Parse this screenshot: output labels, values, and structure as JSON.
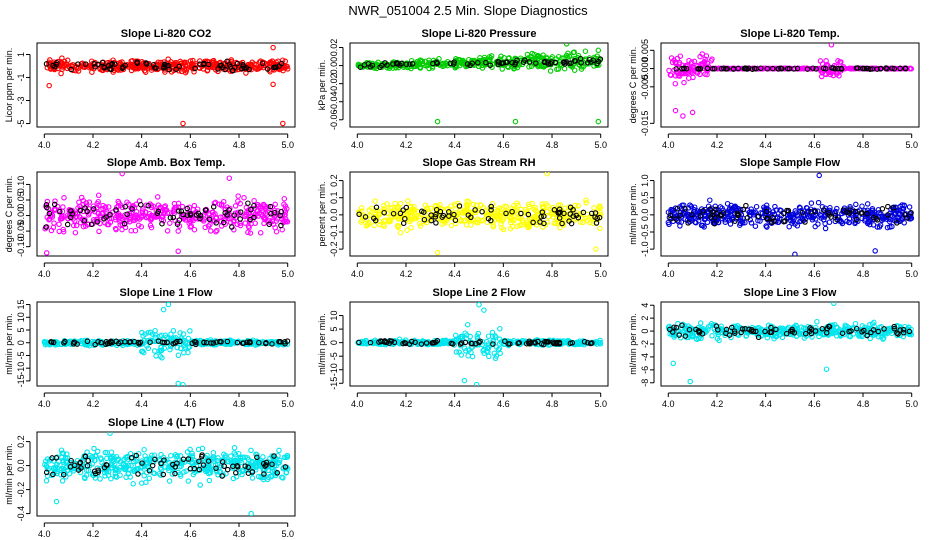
{
  "figure": {
    "title": "NWR_051004  2.5 Min. Slope Diagnostics"
  },
  "chart_data": [
    {
      "type": "scatter",
      "title": "Slope Li-820 CO2",
      "ylabel": "Licor ppm per min.",
      "xlim": [
        3.97,
        5.03
      ],
      "xticks": [
        "4.0",
        "4.2",
        "4.4",
        "4.6",
        "4.8",
        "5.0"
      ],
      "ylim": [
        -5.3,
        2.0
      ],
      "yticks": [
        "1",
        "-1",
        "-3",
        "-5"
      ],
      "color": "#ff0000",
      "seed": 11,
      "n": 420,
      "spread": 0.45,
      "profile": "flat",
      "outliers": [
        [
          4.57,
          -5.0
        ],
        [
          4.98,
          -5.0
        ],
        [
          4.94,
          1.6
        ],
        [
          4.94,
          -1.6
        ],
        [
          4.02,
          -1.7
        ]
      ]
    },
    {
      "type": "scatter",
      "title": "Slope Li-820 Pressure",
      "ylabel": "kPa per min.",
      "xlim": [
        3.97,
        5.03
      ],
      "xticks": [
        "4.0",
        "4.2",
        "4.4",
        "4.6",
        "4.8",
        "5.0"
      ],
      "ylim": [
        -0.068,
        0.025
      ],
      "yticks": [
        "0.02",
        "0.00",
        "-0.02",
        "-0.04",
        "-0.06"
      ],
      "color": "#00cc00",
      "seed": 23,
      "n": 380,
      "spread": 0.004,
      "profile": "rising",
      "outliers": [
        [
          4.86,
          0.024
        ],
        [
          4.33,
          -0.062
        ],
        [
          4.65,
          -0.062
        ],
        [
          4.99,
          -0.062
        ],
        [
          4.82,
          -0.004
        ]
      ]
    },
    {
      "type": "scatter",
      "title": "Slope Li-820 Temp.",
      "ylabel": "degrees C per min.",
      "xlim": [
        3.97,
        5.03
      ],
      "xticks": [
        "4.0",
        "4.2",
        "4.4",
        "4.6",
        "4.8",
        "5.0"
      ],
      "ylim": [
        -0.016,
        0.007
      ],
      "yticks": [
        "0.005",
        "0.000",
        "-0.005",
        "-0.015"
      ],
      "color": "#ff00ff",
      "seed": 37,
      "n": 360,
      "spread": 0.0004,
      "profile": "temp",
      "outliers": [
        [
          4.67,
          0.0065
        ],
        [
          4.03,
          -0.0115
        ],
        [
          4.06,
          -0.013
        ],
        [
          4.1,
          -0.012
        ]
      ]
    },
    {
      "type": "scatter",
      "title": "Slope Amb. Box Temp.",
      "ylabel": "degrees C per min.",
      "xlim": [
        3.97,
        5.03
      ],
      "xticks": [
        "4.0",
        "4.2",
        "4.4",
        "4.6",
        "4.8",
        "5.0"
      ],
      "ylim": [
        -0.13,
        0.14
      ],
      "yticks": [
        "0.10",
        "0.05",
        "0.00",
        "-0.05",
        "-0.10"
      ],
      "color": "#ff00ff",
      "seed": 41,
      "n": 430,
      "spread": 0.045,
      "profile": "flat",
      "outliers": [
        [
          4.32,
          0.135
        ],
        [
          4.01,
          -0.12
        ],
        [
          4.55,
          -0.115
        ],
        [
          4.76,
          0.12
        ]
      ]
    },
    {
      "type": "scatter",
      "title": "Slope Gas Stream RH",
      "ylabel": "percent per min.",
      "xlim": [
        3.97,
        5.03
      ],
      "xticks": [
        "4.0",
        "4.2",
        "4.4",
        "4.6",
        "4.8",
        "5.0"
      ],
      "ylim": [
        -0.24,
        0.25
      ],
      "yticks": [
        "0.2",
        "0.1",
        "0.0",
        "-0.1",
        "-0.2"
      ],
      "color": "#ffff00",
      "seed": 53,
      "n": 420,
      "spread": 0.07,
      "profile": "flat",
      "outliers": [
        [
          4.78,
          0.24
        ],
        [
          4.33,
          -0.22
        ],
        [
          4.98,
          -0.2
        ]
      ]
    },
    {
      "type": "scatter",
      "title": "Slope Sample Flow",
      "ylabel": "ml/min per min.",
      "xlim": [
        3.97,
        5.03
      ],
      "xticks": [
        "4.0",
        "4.2",
        "4.4",
        "4.6",
        "4.8",
        "5.0"
      ],
      "ylim": [
        -1.2,
        1.25
      ],
      "yticks": [
        "1.0",
        "0.5",
        "0.0",
        "-0.5",
        "-1.0"
      ],
      "color": "#0000dd",
      "seed": 67,
      "n": 440,
      "spread": 0.3,
      "profile": "flat",
      "outliers": [
        [
          4.62,
          1.15
        ],
        [
          4.52,
          -1.15
        ],
        [
          4.85,
          -1.05
        ]
      ]
    },
    {
      "type": "scatter",
      "title": "Slope Line 1 Flow",
      "ylabel": "ml/min per min.",
      "xlim": [
        3.97,
        5.03
      ],
      "xticks": [
        "4.0",
        "4.2",
        "4.4",
        "4.6",
        "4.8",
        "5.0"
      ],
      "ylim": [
        -17,
        16
      ],
      "yticks": [
        "15",
        "10",
        "5",
        "0",
        "-5",
        "-10",
        "-15"
      ],
      "color": "#00e5ee",
      "seed": 71,
      "n": 380,
      "spread": 0.8,
      "profile": "burst",
      "outliers": [
        [
          4.51,
          15
        ],
        [
          4.55,
          -16
        ],
        [
          4.57,
          -16.5
        ],
        [
          4.49,
          13
        ]
      ]
    },
    {
      "type": "scatter",
      "title": "Slope Line 2 Flow",
      "ylabel": "ml/min per min.",
      "xlim": [
        3.97,
        5.03
      ],
      "xticks": [
        "4.0",
        "4.2",
        "4.4",
        "4.6",
        "4.8",
        "5.0"
      ],
      "ylim": [
        -16,
        15
      ],
      "yticks": [
        "10",
        "5",
        "0",
        "-5",
        "-10",
        "-15"
      ],
      "color": "#00e5ee",
      "seed": 79,
      "n": 380,
      "spread": 0.8,
      "profile": "burst",
      "outliers": [
        [
          4.5,
          14
        ],
        [
          4.44,
          -14
        ],
        [
          4.49,
          -15.5
        ],
        [
          4.52,
          12
        ]
      ]
    },
    {
      "type": "scatter",
      "title": "Slope Line 3 Flow",
      "ylabel": "ml/min per min.",
      "xlim": [
        3.97,
        5.03
      ],
      "xticks": [
        "4.0",
        "4.2",
        "4.4",
        "4.6",
        "4.8",
        "5.0"
      ],
      "ylim": [
        -8.5,
        4.5
      ],
      "yticks": [
        "4",
        "2",
        "0",
        "-2",
        "-4",
        "-6",
        "-8"
      ],
      "color": "#00e5ee",
      "seed": 83,
      "n": 420,
      "spread": 1.0,
      "profile": "flat",
      "outliers": [
        [
          4.68,
          4.3
        ],
        [
          4.09,
          -7.8
        ],
        [
          4.65,
          -5.9
        ],
        [
          4.02,
          -5.0
        ]
      ]
    },
    {
      "type": "scatter",
      "title": "Slope Line 4 (LT) Flow",
      "ylabel": "ml/min per min.",
      "xlim": [
        3.97,
        5.03
      ],
      "xticks": [
        "4.0",
        "4.2",
        "4.4",
        "4.6",
        "4.8",
        "5.0"
      ],
      "ylim": [
        -0.42,
        0.28
      ],
      "yticks": [
        "0.2",
        "0.0",
        "-0.2",
        "-0.4"
      ],
      "color": "#00e5ee",
      "seed": 97,
      "n": 480,
      "spread": 0.11,
      "profile": "flat",
      "outliers": [
        [
          4.85,
          -0.4
        ],
        [
          4.27,
          0.27
        ],
        [
          4.05,
          -0.3
        ]
      ]
    }
  ]
}
